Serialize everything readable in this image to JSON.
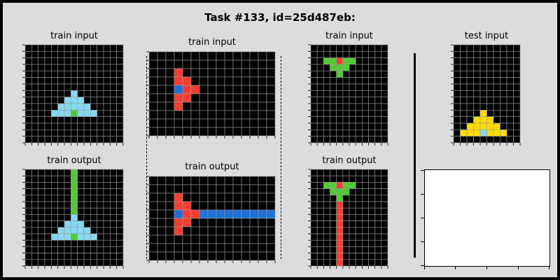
{
  "title": "Task #133, id=25d487eb:",
  "colors": {
    "0": "#000000",
    "1": "#1e6fd9",
    "2": "#f93c31",
    "3": "#4fcc30",
    "4": "#ffdc00",
    "5": "#999999",
    "6": "#e53aa3",
    "7": "#ff851b",
    "8": "#87d8f1",
    "9": "#921231"
  },
  "panels": [
    {
      "id": "ex1-in",
      "label": "train input",
      "grid": [
        [
          0,
          0,
          0,
          0,
          0,
          0,
          0,
          0,
          0,
          0,
          0,
          0,
          0,
          0,
          0
        ],
        [
          0,
          0,
          0,
          0,
          0,
          0,
          0,
          0,
          0,
          0,
          0,
          0,
          0,
          0,
          0
        ],
        [
          0,
          0,
          0,
          0,
          0,
          0,
          0,
          0,
          0,
          0,
          0,
          0,
          0,
          0,
          0
        ],
        [
          0,
          0,
          0,
          0,
          0,
          0,
          0,
          0,
          0,
          0,
          0,
          0,
          0,
          0,
          0
        ],
        [
          0,
          0,
          0,
          0,
          0,
          0,
          0,
          0,
          0,
          0,
          0,
          0,
          0,
          0,
          0
        ],
        [
          0,
          0,
          0,
          0,
          0,
          0,
          0,
          0,
          0,
          0,
          0,
          0,
          0,
          0,
          0
        ],
        [
          0,
          0,
          0,
          0,
          0,
          0,
          0,
          0,
          0,
          0,
          0,
          0,
          0,
          0,
          0
        ],
        [
          0,
          0,
          0,
          0,
          0,
          0,
          0,
          8,
          0,
          0,
          0,
          0,
          0,
          0,
          0
        ],
        [
          0,
          0,
          0,
          0,
          0,
          0,
          8,
          8,
          8,
          0,
          0,
          0,
          0,
          0,
          0
        ],
        [
          0,
          0,
          0,
          0,
          0,
          8,
          8,
          8,
          8,
          8,
          0,
          0,
          0,
          0,
          0
        ],
        [
          0,
          0,
          0,
          0,
          8,
          8,
          8,
          3,
          8,
          8,
          8,
          0,
          0,
          0,
          0
        ],
        [
          0,
          0,
          0,
          0,
          0,
          0,
          0,
          0,
          0,
          0,
          0,
          0,
          0,
          0,
          0
        ],
        [
          0,
          0,
          0,
          0,
          0,
          0,
          0,
          0,
          0,
          0,
          0,
          0,
          0,
          0,
          0
        ],
        [
          0,
          0,
          0,
          0,
          0,
          0,
          0,
          0,
          0,
          0,
          0,
          0,
          0,
          0,
          0
        ],
        [
          0,
          0,
          0,
          0,
          0,
          0,
          0,
          0,
          0,
          0,
          0,
          0,
          0,
          0,
          0
        ]
      ]
    },
    {
      "id": "ex1-out",
      "label": "train output",
      "grid": [
        [
          0,
          0,
          0,
          0,
          0,
          0,
          0,
          3,
          0,
          0,
          0,
          0,
          0,
          0,
          0
        ],
        [
          0,
          0,
          0,
          0,
          0,
          0,
          0,
          3,
          0,
          0,
          0,
          0,
          0,
          0,
          0
        ],
        [
          0,
          0,
          0,
          0,
          0,
          0,
          0,
          3,
          0,
          0,
          0,
          0,
          0,
          0,
          0
        ],
        [
          0,
          0,
          0,
          0,
          0,
          0,
          0,
          3,
          0,
          0,
          0,
          0,
          0,
          0,
          0
        ],
        [
          0,
          0,
          0,
          0,
          0,
          0,
          0,
          3,
          0,
          0,
          0,
          0,
          0,
          0,
          0
        ],
        [
          0,
          0,
          0,
          0,
          0,
          0,
          0,
          3,
          0,
          0,
          0,
          0,
          0,
          0,
          0
        ],
        [
          0,
          0,
          0,
          0,
          0,
          0,
          0,
          3,
          0,
          0,
          0,
          0,
          0,
          0,
          0
        ],
        [
          0,
          0,
          0,
          0,
          0,
          0,
          0,
          8,
          0,
          0,
          0,
          0,
          0,
          0,
          0
        ],
        [
          0,
          0,
          0,
          0,
          0,
          0,
          8,
          8,
          8,
          0,
          0,
          0,
          0,
          0,
          0
        ],
        [
          0,
          0,
          0,
          0,
          0,
          8,
          8,
          8,
          8,
          8,
          0,
          0,
          0,
          0,
          0
        ],
        [
          0,
          0,
          0,
          0,
          8,
          8,
          8,
          3,
          8,
          8,
          8,
          0,
          0,
          0,
          0
        ],
        [
          0,
          0,
          0,
          0,
          0,
          0,
          0,
          0,
          0,
          0,
          0,
          0,
          0,
          0,
          0
        ],
        [
          0,
          0,
          0,
          0,
          0,
          0,
          0,
          0,
          0,
          0,
          0,
          0,
          0,
          0,
          0
        ],
        [
          0,
          0,
          0,
          0,
          0,
          0,
          0,
          0,
          0,
          0,
          0,
          0,
          0,
          0,
          0
        ],
        [
          0,
          0,
          0,
          0,
          0,
          0,
          0,
          0,
          0,
          0,
          0,
          0,
          0,
          0,
          0
        ]
      ]
    },
    {
      "id": "ex2-in",
      "label": "train input",
      "grid": [
        [
          0,
          0,
          0,
          0,
          0,
          0,
          0,
          0,
          0,
          0,
          0,
          0,
          0,
          0,
          0
        ],
        [
          0,
          0,
          0,
          0,
          0,
          0,
          0,
          0,
          0,
          0,
          0,
          0,
          0,
          0,
          0
        ],
        [
          0,
          0,
          0,
          2,
          0,
          0,
          0,
          0,
          0,
          0,
          0,
          0,
          0,
          0,
          0
        ],
        [
          0,
          0,
          0,
          2,
          2,
          0,
          0,
          0,
          0,
          0,
          0,
          0,
          0,
          0,
          0
        ],
        [
          0,
          0,
          0,
          1,
          2,
          2,
          0,
          0,
          0,
          0,
          0,
          0,
          0,
          0,
          0
        ],
        [
          0,
          0,
          0,
          2,
          2,
          0,
          0,
          0,
          0,
          0,
          0,
          0,
          0,
          0,
          0
        ],
        [
          0,
          0,
          0,
          2,
          0,
          0,
          0,
          0,
          0,
          0,
          0,
          0,
          0,
          0,
          0
        ],
        [
          0,
          0,
          0,
          0,
          0,
          0,
          0,
          0,
          0,
          0,
          0,
          0,
          0,
          0,
          0
        ],
        [
          0,
          0,
          0,
          0,
          0,
          0,
          0,
          0,
          0,
          0,
          0,
          0,
          0,
          0,
          0
        ],
        [
          0,
          0,
          0,
          0,
          0,
          0,
          0,
          0,
          0,
          0,
          0,
          0,
          0,
          0,
          0
        ]
      ]
    },
    {
      "id": "ex2-out",
      "label": "train output",
      "grid": [
        [
          0,
          0,
          0,
          0,
          0,
          0,
          0,
          0,
          0,
          0,
          0,
          0,
          0,
          0,
          0
        ],
        [
          0,
          0,
          0,
          0,
          0,
          0,
          0,
          0,
          0,
          0,
          0,
          0,
          0,
          0,
          0
        ],
        [
          0,
          0,
          0,
          2,
          0,
          0,
          0,
          0,
          0,
          0,
          0,
          0,
          0,
          0,
          0
        ],
        [
          0,
          0,
          0,
          2,
          2,
          0,
          0,
          0,
          0,
          0,
          0,
          0,
          0,
          0,
          0
        ],
        [
          0,
          0,
          0,
          1,
          2,
          2,
          1,
          1,
          1,
          1,
          1,
          1,
          1,
          1,
          1
        ],
        [
          0,
          0,
          0,
          2,
          2,
          0,
          0,
          0,
          0,
          0,
          0,
          0,
          0,
          0,
          0
        ],
        [
          0,
          0,
          0,
          2,
          0,
          0,
          0,
          0,
          0,
          0,
          0,
          0,
          0,
          0,
          0
        ],
        [
          0,
          0,
          0,
          0,
          0,
          0,
          0,
          0,
          0,
          0,
          0,
          0,
          0,
          0,
          0
        ],
        [
          0,
          0,
          0,
          0,
          0,
          0,
          0,
          0,
          0,
          0,
          0,
          0,
          0,
          0,
          0
        ],
        [
          0,
          0,
          0,
          0,
          0,
          0,
          0,
          0,
          0,
          0,
          0,
          0,
          0,
          0,
          0
        ]
      ]
    },
    {
      "id": "ex3-in",
      "label": "train input",
      "grid": [
        [
          0,
          0,
          0,
          0,
          0,
          0,
          0,
          0,
          0,
          0,
          0,
          0
        ],
        [
          0,
          0,
          0,
          0,
          0,
          0,
          0,
          0,
          0,
          0,
          0,
          0
        ],
        [
          0,
          0,
          3,
          3,
          2,
          3,
          3,
          0,
          0,
          0,
          0,
          0
        ],
        [
          0,
          0,
          0,
          3,
          3,
          3,
          0,
          0,
          0,
          0,
          0,
          0
        ],
        [
          0,
          0,
          0,
          0,
          3,
          0,
          0,
          0,
          0,
          0,
          0,
          0
        ],
        [
          0,
          0,
          0,
          0,
          0,
          0,
          0,
          0,
          0,
          0,
          0,
          0
        ],
        [
          0,
          0,
          0,
          0,
          0,
          0,
          0,
          0,
          0,
          0,
          0,
          0
        ],
        [
          0,
          0,
          0,
          0,
          0,
          0,
          0,
          0,
          0,
          0,
          0,
          0
        ],
        [
          0,
          0,
          0,
          0,
          0,
          0,
          0,
          0,
          0,
          0,
          0,
          0
        ],
        [
          0,
          0,
          0,
          0,
          0,
          0,
          0,
          0,
          0,
          0,
          0,
          0
        ],
        [
          0,
          0,
          0,
          0,
          0,
          0,
          0,
          0,
          0,
          0,
          0,
          0
        ],
        [
          0,
          0,
          0,
          0,
          0,
          0,
          0,
          0,
          0,
          0,
          0,
          0
        ],
        [
          0,
          0,
          0,
          0,
          0,
          0,
          0,
          0,
          0,
          0,
          0,
          0
        ],
        [
          0,
          0,
          0,
          0,
          0,
          0,
          0,
          0,
          0,
          0,
          0,
          0
        ],
        [
          0,
          0,
          0,
          0,
          0,
          0,
          0,
          0,
          0,
          0,
          0,
          0
        ]
      ]
    },
    {
      "id": "ex3-out",
      "label": "train output",
      "grid": [
        [
          0,
          0,
          0,
          0,
          0,
          0,
          0,
          0,
          0,
          0,
          0,
          0
        ],
        [
          0,
          0,
          0,
          0,
          0,
          0,
          0,
          0,
          0,
          0,
          0,
          0
        ],
        [
          0,
          0,
          3,
          3,
          2,
          3,
          3,
          0,
          0,
          0,
          0,
          0
        ],
        [
          0,
          0,
          0,
          3,
          3,
          3,
          0,
          0,
          0,
          0,
          0,
          0
        ],
        [
          0,
          0,
          0,
          0,
          3,
          0,
          0,
          0,
          0,
          0,
          0,
          0
        ],
        [
          0,
          0,
          0,
          0,
          2,
          0,
          0,
          0,
          0,
          0,
          0,
          0
        ],
        [
          0,
          0,
          0,
          0,
          2,
          0,
          0,
          0,
          0,
          0,
          0,
          0
        ],
        [
          0,
          0,
          0,
          0,
          2,
          0,
          0,
          0,
          0,
          0,
          0,
          0
        ],
        [
          0,
          0,
          0,
          0,
          2,
          0,
          0,
          0,
          0,
          0,
          0,
          0
        ],
        [
          0,
          0,
          0,
          0,
          2,
          0,
          0,
          0,
          0,
          0,
          0,
          0
        ],
        [
          0,
          0,
          0,
          0,
          2,
          0,
          0,
          0,
          0,
          0,
          0,
          0
        ],
        [
          0,
          0,
          0,
          0,
          2,
          0,
          0,
          0,
          0,
          0,
          0,
          0
        ],
        [
          0,
          0,
          0,
          0,
          2,
          0,
          0,
          0,
          0,
          0,
          0,
          0
        ],
        [
          0,
          0,
          0,
          0,
          2,
          0,
          0,
          0,
          0,
          0,
          0,
          0
        ],
        [
          0,
          0,
          0,
          0,
          2,
          0,
          0,
          0,
          0,
          0,
          0,
          0
        ]
      ]
    },
    {
      "id": "test-in",
      "label": "test input",
      "grid": [
        [
          0,
          0,
          0,
          0,
          0,
          0,
          0,
          0,
          0,
          0
        ],
        [
          0,
          0,
          0,
          0,
          0,
          0,
          0,
          0,
          0,
          0
        ],
        [
          0,
          0,
          0,
          0,
          0,
          0,
          0,
          0,
          0,
          0
        ],
        [
          0,
          0,
          0,
          0,
          0,
          0,
          0,
          0,
          0,
          0
        ],
        [
          0,
          0,
          0,
          0,
          0,
          0,
          0,
          0,
          0,
          0
        ],
        [
          0,
          0,
          0,
          0,
          0,
          0,
          0,
          0,
          0,
          0
        ],
        [
          0,
          0,
          0,
          0,
          0,
          0,
          0,
          0,
          0,
          0
        ],
        [
          0,
          0,
          0,
          0,
          0,
          0,
          0,
          0,
          0,
          0
        ],
        [
          0,
          0,
          0,
          0,
          0,
          0,
          0,
          0,
          0,
          0
        ],
        [
          0,
          0,
          0,
          0,
          0,
          0,
          0,
          0,
          0,
          0
        ],
        [
          0,
          0,
          0,
          0,
          4,
          0,
          0,
          0,
          0,
          0
        ],
        [
          0,
          0,
          0,
          4,
          4,
          4,
          0,
          0,
          0,
          0
        ],
        [
          0,
          0,
          4,
          4,
          4,
          4,
          4,
          0,
          0,
          0
        ],
        [
          0,
          4,
          4,
          4,
          8,
          4,
          4,
          4,
          0,
          0
        ],
        [
          0,
          0,
          0,
          0,
          0,
          0,
          0,
          0,
          0,
          0
        ]
      ]
    }
  ]
}
